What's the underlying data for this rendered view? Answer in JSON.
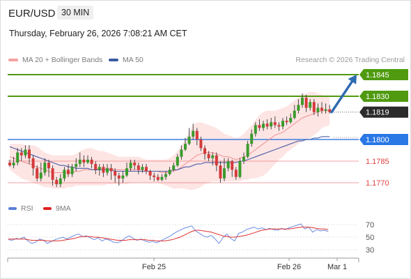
{
  "header": {
    "symbol": "EUR/USD",
    "timeframe": "30 MIN",
    "datetime": "Thursday, February 26, 2026 7:08:21 AM CET"
  },
  "legend": {
    "ma20_label": "MA 20 + Bollinger Bands",
    "ma50_label": "MA 50",
    "credit": "Research © 2026 Trading Central"
  },
  "rsi_legend": {
    "rsi_label": "RSI",
    "ma9_label": "9MA"
  },
  "colors": {
    "resistance": "#4f9a0f",
    "support_pivot": "#3d7fe0",
    "support": "#e8555a",
    "current": "#2b2b2b",
    "candle_up": "#3a9b2c",
    "candle_down": "#d43a3a",
    "bollinger_fill": "#fbd4d2",
    "ma20": "#f09090",
    "ma50": "#4a5da8",
    "arrow": "#2f6bb0",
    "rsi": "#6a8be0",
    "rsi_ma": "#e03030"
  },
  "chart_data": {
    "type": "candlestick",
    "price_range": [
      1.1757,
      1.1857
    ],
    "x_ticks": [
      "Feb 25",
      "Feb 26",
      "Mar 1"
    ],
    "levels": [
      {
        "value": 1.1845,
        "label": "1.1845",
        "kind": "resistance"
      },
      {
        "value": 1.183,
        "label": "1.1830",
        "kind": "resistance"
      },
      {
        "value": 1.1819,
        "label": "1.1819",
        "kind": "current"
      },
      {
        "value": 1.18,
        "label": "1.1800",
        "kind": "pivot"
      },
      {
        "value": 1.1785,
        "label": "1.1785",
        "kind": "support"
      },
      {
        "value": 1.177,
        "label": "1.1770",
        "kind": "support"
      }
    ],
    "candles": [
      [
        1.1784,
        1.1782,
        1.1786,
        1.1781
      ],
      [
        1.1782,
        1.1784,
        1.1788,
        1.178
      ],
      [
        1.1784,
        1.1791,
        1.1794,
        1.1782
      ],
      [
        1.1791,
        1.1789,
        1.1794,
        1.1785
      ],
      [
        1.1789,
        1.1793,
        1.1796,
        1.1787
      ],
      [
        1.1793,
        1.1787,
        1.1796,
        1.1783
      ],
      [
        1.1787,
        1.178,
        1.1789,
        1.1775
      ],
      [
        1.178,
        1.1773,
        1.1782,
        1.1771
      ],
      [
        1.1773,
        1.1777,
        1.1784,
        1.1771
      ],
      [
        1.1777,
        1.1784,
        1.1787,
        1.1775
      ],
      [
        1.1784,
        1.178,
        1.1786,
        1.1774
      ],
      [
        1.178,
        1.1772,
        1.1782,
        1.1768
      ],
      [
        1.1772,
        1.1769,
        1.1774,
        1.1767
      ],
      [
        1.1769,
        1.1773,
        1.1776,
        1.1767
      ],
      [
        1.1773,
        1.1779,
        1.1781,
        1.1771
      ],
      [
        1.1779,
        1.1776,
        1.1783,
        1.1774
      ],
      [
        1.1776,
        1.1781,
        1.1783,
        1.1774
      ],
      [
        1.1781,
        1.1783,
        1.1787,
        1.1778
      ],
      [
        1.1783,
        1.1786,
        1.1791,
        1.1781
      ],
      [
        1.1786,
        1.1784,
        1.1789,
        1.1781
      ],
      [
        1.1784,
        1.1786,
        1.1789,
        1.1783
      ],
      [
        1.1786,
        1.1783,
        1.1788,
        1.178
      ],
      [
        1.1783,
        1.1779,
        1.1785,
        1.1776
      ],
      [
        1.1779,
        1.1781,
        1.1783,
        1.1775
      ],
      [
        1.1781,
        1.1777,
        1.1783,
        1.1774
      ],
      [
        1.1777,
        1.178,
        1.1783,
        1.1775
      ],
      [
        1.178,
        1.1778,
        1.1783,
        1.1772
      ],
      [
        1.1778,
        1.1775,
        1.178,
        1.177
      ],
      [
        1.1775,
        1.1773,
        1.1777,
        1.1768
      ],
      [
        1.1773,
        1.1775,
        1.1778,
        1.177
      ],
      [
        1.1775,
        1.178,
        1.1784,
        1.1774
      ],
      [
        1.178,
        1.1784,
        1.1786,
        1.1778
      ],
      [
        1.1784,
        1.1782,
        1.1786,
        1.1779
      ],
      [
        1.1782,
        1.1779,
        1.1784,
        1.1776
      ],
      [
        1.1779,
        1.1781,
        1.1783,
        1.1777
      ],
      [
        1.1781,
        1.1778,
        1.1783,
        1.1776
      ],
      [
        1.1778,
        1.1775,
        1.1779,
        1.1772
      ],
      [
        1.1775,
        1.1774,
        1.1777,
        1.1771
      ],
      [
        1.1774,
        1.1772,
        1.1776,
        1.1771
      ],
      [
        1.1772,
        1.1774,
        1.1776,
        1.1771
      ],
      [
        1.1774,
        1.1776,
        1.1778,
        1.1772
      ],
      [
        1.1776,
        1.1779,
        1.1781,
        1.1775
      ],
      [
        1.1779,
        1.1782,
        1.1784,
        1.1778
      ],
      [
        1.1782,
        1.1788,
        1.179,
        1.1781
      ],
      [
        1.1788,
        1.1793,
        1.1796,
        1.1786
      ],
      [
        1.1793,
        1.1797,
        1.1801,
        1.1792
      ],
      [
        1.1797,
        1.1802,
        1.1808,
        1.1796
      ],
      [
        1.1802,
        1.1806,
        1.1811,
        1.18
      ],
      [
        1.1806,
        1.18,
        1.1808,
        1.1796
      ],
      [
        1.18,
        1.1794,
        1.1802,
        1.1792
      ],
      [
        1.1794,
        1.179,
        1.1796,
        1.1786
      ],
      [
        1.179,
        1.1787,
        1.1792,
        1.1785
      ],
      [
        1.1787,
        1.1789,
        1.1791,
        1.1782
      ],
      [
        1.1789,
        1.1782,
        1.1791,
        1.1778
      ],
      [
        1.1782,
        1.1773,
        1.1785,
        1.177
      ],
      [
        1.1773,
        1.178,
        1.1787,
        1.1771
      ],
      [
        1.178,
        1.1785,
        1.1787,
        1.1778
      ],
      [
        1.1785,
        1.1779,
        1.1786,
        1.1774
      ],
      [
        1.1779,
        1.1774,
        1.1781,
        1.1772
      ],
      [
        1.1774,
        1.1785,
        1.1787,
        1.1773
      ],
      [
        1.1785,
        1.1788,
        1.1791,
        1.1783
      ],
      [
        1.1788,
        1.1797,
        1.1799,
        1.1787
      ],
      [
        1.1797,
        1.1804,
        1.1807,
        1.1795
      ],
      [
        1.1804,
        1.181,
        1.1812,
        1.1802
      ],
      [
        1.181,
        1.1808,
        1.1814,
        1.1806
      ],
      [
        1.1808,
        1.1811,
        1.1813,
        1.1806
      ],
      [
        1.1811,
        1.1809,
        1.1814,
        1.1807
      ],
      [
        1.1809,
        1.1812,
        1.1815,
        1.1807
      ],
      [
        1.1812,
        1.181,
        1.1816,
        1.1808
      ],
      [
        1.181,
        1.1809,
        1.1812,
        1.1806
      ],
      [
        1.1809,
        1.1813,
        1.1815,
        1.1807
      ],
      [
        1.1813,
        1.1812,
        1.1816,
        1.181
      ],
      [
        1.1812,
        1.1815,
        1.1818,
        1.1811
      ],
      [
        1.1815,
        1.182,
        1.1824,
        1.1814
      ],
      [
        1.182,
        1.1824,
        1.1828,
        1.1818
      ],
      [
        1.1824,
        1.1829,
        1.1832,
        1.1822
      ],
      [
        1.1829,
        1.1822,
        1.1831,
        1.1819
      ],
      [
        1.1822,
        1.1826,
        1.1828,
        1.182
      ],
      [
        1.1826,
        1.1819,
        1.1828,
        1.1817
      ],
      [
        1.1819,
        1.1822,
        1.1825,
        1.1816
      ],
      [
        1.1822,
        1.182,
        1.1826,
        1.1818
      ],
      [
        1.182,
        1.1821,
        1.1825,
        1.1818
      ],
      [
        1.1821,
        1.1819,
        1.1824,
        1.1818
      ]
    ],
    "ma20": [
      1.1788,
      1.1787,
      1.1786,
      1.1785,
      1.1784,
      1.1783,
      1.1782,
      1.1781,
      1.178,
      1.1779,
      1.1778,
      1.1777,
      1.1777,
      1.1777,
      1.1777,
      1.1777,
      1.1777,
      1.1778,
      1.1778,
      1.1779,
      1.1779,
      1.1779,
      1.1779,
      1.178,
      1.178,
      1.178,
      1.178,
      1.1779,
      1.1779,
      1.1779,
      1.1779,
      1.1779,
      1.1779,
      1.1779,
      1.1779,
      1.1778,
      1.1778,
      1.1778,
      1.1778,
      1.1777,
      1.1777,
      1.1777,
      1.1778,
      1.1779,
      1.1781,
      1.1783,
      1.1785,
      1.1787,
      1.1789,
      1.179,
      1.1791,
      1.1791,
      1.1791,
      1.179,
      1.1789,
      1.1788,
      1.1788,
      1.1787,
      1.1786,
      1.1787,
      1.1788,
      1.1789,
      1.1791,
      1.1793,
      1.1795,
      1.1797,
      1.1799,
      1.1801,
      1.1803,
      1.1804,
      1.1805,
      1.1807,
      1.1809,
      1.1811,
      1.1813,
      1.1815,
      1.1816,
      1.1817,
      1.1818,
      1.1819,
      1.182,
      1.182,
      1.182
    ],
    "ma50": [
      1.1795,
      1.1794,
      1.1793,
      1.1792,
      1.1791,
      1.179,
      1.1789,
      1.1788,
      1.1787,
      1.1786,
      1.1785,
      1.1784,
      1.1783,
      1.1782,
      1.1782,
      1.1781,
      1.1781,
      1.178,
      1.178,
      1.178,
      1.178,
      1.1779,
      1.1779,
      1.1779,
      1.1779,
      1.1779,
      1.1779,
      1.1778,
      1.1778,
      1.1778,
      1.1778,
      1.1778,
      1.1778,
      1.1778,
      1.1778,
      1.1778,
      1.1778,
      1.1778,
      1.1778,
      1.1778,
      1.1778,
      1.1778,
      1.1779,
      1.1779,
      1.178,
      1.1781,
      1.1781,
      1.1782,
      1.1783,
      1.1783,
      1.1784,
      1.1784,
      1.1784,
      1.1784,
      1.1784,
      1.1784,
      1.1784,
      1.1784,
      1.1784,
      1.1785,
      1.1785,
      1.1786,
      1.1787,
      1.1788,
      1.1789,
      1.179,
      1.1791,
      1.1792,
      1.1793,
      1.1794,
      1.1795,
      1.1796,
      1.1797,
      1.1798,
      1.1799,
      1.1799,
      1.18,
      1.18,
      1.1801,
      1.1801,
      1.1802,
      1.1802,
      1.1802
    ],
    "bb_upper": [
      1.1797,
      1.1797,
      1.1797,
      1.1797,
      1.1796,
      1.1796,
      1.1796,
      1.1795,
      1.1793,
      1.1791,
      1.179,
      1.1789,
      1.1789,
      1.1789,
      1.1789,
      1.1789,
      1.1789,
      1.179,
      1.1792,
      1.1793,
      1.1794,
      1.1794,
      1.1793,
      1.1792,
      1.1792,
      1.1791,
      1.179,
      1.1789,
      1.1788,
      1.1788,
      1.1788,
      1.1788,
      1.1788,
      1.1788,
      1.1787,
      1.1786,
      1.1786,
      1.1786,
      1.1786,
      1.1786,
      1.1786,
      1.1787,
      1.1789,
      1.1792,
      1.1796,
      1.18,
      1.1805,
      1.181,
      1.1812,
      1.1812,
      1.1811,
      1.181,
      1.1809,
      1.1808,
      1.1806,
      1.1804,
      1.1803,
      1.1802,
      1.1801,
      1.1802,
      1.1804,
      1.1807,
      1.181,
      1.1814,
      1.1817,
      1.1819,
      1.182,
      1.182,
      1.182,
      1.1821,
      1.1822,
      1.1823,
      1.1825,
      1.1827,
      1.1829,
      1.1831,
      1.1832,
      1.1833,
      1.1833,
      1.1832,
      1.1831,
      1.183,
      1.1829
    ],
    "bb_lower": [
      1.1779,
      1.1777,
      1.1775,
      1.1773,
      1.1772,
      1.1771,
      1.177,
      1.1769,
      1.1768,
      1.1767,
      1.1767,
      1.1766,
      1.1766,
      1.1766,
      1.1766,
      1.1767,
      1.1767,
      1.1768,
      1.1768,
      1.1768,
      1.1768,
      1.1768,
      1.1768,
      1.1768,
      1.1768,
      1.1769,
      1.1769,
      1.1769,
      1.1769,
      1.1769,
      1.1769,
      1.177,
      1.177,
      1.177,
      1.177,
      1.177,
      1.177,
      1.177,
      1.177,
      1.1769,
      1.1768,
      1.1767,
      1.1766,
      1.1766,
      1.1766,
      1.1766,
      1.1765,
      1.1765,
      1.1766,
      1.1767,
      1.1769,
      1.177,
      1.1771,
      1.1771,
      1.1771,
      1.1771,
      1.1771,
      1.1771,
      1.1771,
      1.1771,
      1.1772,
      1.1772,
      1.1773,
      1.1773,
      1.1774,
      1.1775,
      1.1777,
      1.178,
      1.1783,
      1.1786,
      1.1788,
      1.1791,
      1.1793,
      1.1795,
      1.1797,
      1.1799,
      1.18,
      1.1801,
      1.1803,
      1.1805,
      1.1808,
      1.1809,
      1.181
    ],
    "projection": {
      "from": 1.1819,
      "to": 1.1845
    },
    "rsi": {
      "ticks": [
        70,
        50,
        30
      ],
      "rsi": [
        46,
        45,
        48,
        47,
        50,
        44,
        40,
        42,
        47,
        45,
        40,
        43,
        46,
        48,
        50,
        47,
        50,
        53,
        55,
        51,
        52,
        49,
        46,
        49,
        44,
        47,
        45,
        42,
        41,
        44,
        49,
        52,
        48,
        45,
        47,
        44,
        42,
        43,
        41,
        44,
        47,
        50,
        54,
        58,
        61,
        64,
        66,
        68,
        60,
        56,
        52,
        50,
        53,
        47,
        40,
        49,
        55,
        48,
        44,
        56,
        58,
        62,
        64,
        66,
        63,
        65,
        62,
        64,
        62,
        61,
        64,
        62,
        65,
        67,
        69,
        71,
        63,
        66,
        58,
        62,
        60,
        61,
        59
      ],
      "ma9": [
        47,
        47,
        47,
        47,
        47,
        46,
        45,
        45,
        45,
        45,
        44,
        44,
        44,
        44,
        45,
        46,
        47,
        48,
        50,
        51,
        51,
        51,
        50,
        50,
        49,
        48,
        47,
        46,
        45,
        45,
        45,
        46,
        46,
        46,
        46,
        46,
        45,
        45,
        44,
        44,
        44,
        45,
        46,
        48,
        50,
        53,
        56,
        59,
        61,
        61,
        60,
        59,
        58,
        56,
        54,
        52,
        51,
        50,
        50,
        51,
        52,
        53,
        55,
        57,
        59,
        61,
        62,
        63,
        63,
        63,
        63,
        63,
        63,
        64,
        65,
        66,
        66,
        66,
        65,
        64,
        63,
        63,
        62
      ]
    }
  }
}
